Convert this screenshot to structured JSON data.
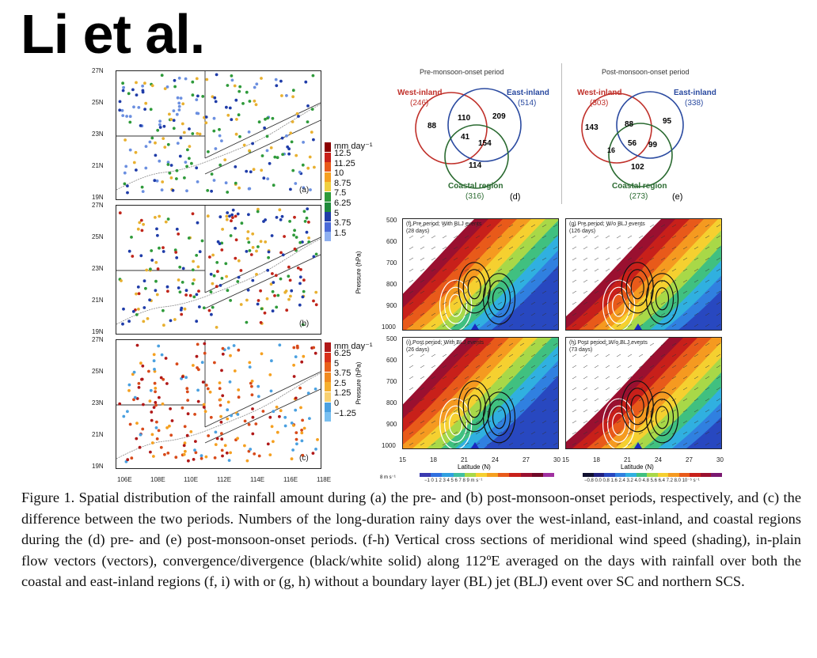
{
  "title": "Li et al.",
  "maps": {
    "lat_labels": [
      "27N",
      "25N",
      "23N",
      "21N",
      "19N"
    ],
    "lon_labels": [
      "106E",
      "108E",
      "110E",
      "112E",
      "114E",
      "116E",
      "118E"
    ],
    "panels": [
      {
        "label": "(a)",
        "dot_colors": [
          "#6b8fe0",
          "#1f3ca8",
          "#2e9a3a",
          "#e8b030"
        ]
      },
      {
        "label": "(b)",
        "dot_colors": [
          "#2e9a3a",
          "#e8b030",
          "#1f3ca8",
          "#c0251a"
        ]
      },
      {
        "label": "(c)",
        "dot_colors": [
          "#d84a1a",
          "#f5a020",
          "#4aa0e0",
          "#b01818"
        ]
      }
    ],
    "legend_ab": {
      "unit": "mm day⁻¹",
      "labels": [
        "12.5",
        "11.25",
        "10",
        "8.75",
        "7.5",
        "6.25",
        "5",
        "3.75",
        "1.5"
      ],
      "colors": [
        "#8b0000",
        "#c8201a",
        "#e85a1a",
        "#f5a020",
        "#f0d040",
        "#2e9a3a",
        "#1f8a3a",
        "#1f3ca8",
        "#4a6ad8",
        "#8fb0f0"
      ]
    },
    "legend_c": {
      "unit": "mm day⁻¹",
      "labels": [
        "6.25",
        "5",
        "3.75",
        "2.5",
        "1.25",
        "0",
        "−1.25"
      ],
      "colors": [
        "#b01818",
        "#d8301a",
        "#e8601a",
        "#f08a20",
        "#f5b030",
        "#f8d070",
        "#4aa0e0",
        "#7ac0f0"
      ]
    }
  },
  "venn_d": {
    "period": "Pre-monsoon-onset period",
    "west_label": "West-inland",
    "west_total": "(246)",
    "east_label": "East-inland",
    "east_total": "(514)",
    "coastal_label": "Coastal region",
    "coastal_total": "(316)",
    "west_only": "88",
    "west_east": "110",
    "east_only": "209",
    "all_three": "41",
    "east_coastal": "154",
    "coastal_only": "114",
    "panel": "(d)"
  },
  "venn_e": {
    "period": "Post-monsoon-onset period",
    "west_label": "West-inland",
    "west_total": "(303)",
    "east_label": "East-inland",
    "east_total": "(338)",
    "coastal_label": "Coastal region",
    "coastal_total": "(273)",
    "west_only": "143",
    "west_east": "88",
    "east_only": "95",
    "west_coastal": "16",
    "all_three": "56",
    "east_coastal": "99",
    "coastal_only": "102",
    "panel": "(e)"
  },
  "cross_sections": {
    "pressure_label": "Pressure (hPa)",
    "pressure_ticks": [
      "500",
      "600",
      "700",
      "800",
      "900",
      "1000"
    ],
    "lat_ticks_left": [
      "15",
      "18",
      "21",
      "24",
      "27",
      "30"
    ],
    "lat_ticks_right": [
      "15",
      "18",
      "21",
      "24",
      "27",
      "30"
    ],
    "xlabel": "Latitude (N)",
    "panels": [
      {
        "label": "(f)  Pre period; With BLJ events",
        "days": "(28 days)"
      },
      {
        "label": "(g)  Pre period; W/o BLJ events",
        "days": "(126 days)"
      },
      {
        "label": "(i)  Post period; With BLJ events",
        "days": "(26 days)"
      },
      {
        "label": "(h)  Post period; W/o BLJ events",
        "days": "(73 days)"
      }
    ],
    "vector_ref": "8 m s⁻¹",
    "cbar_left": "−1 0  1  2  3  4  5  6  7  8  9  m s⁻¹",
    "cbar_right": "−0.8 0.0 0.8 1.6 2.4 3.2 4.0 4.8 5.6 6.4 7.2 8.0 10⁻⁵ s⁻¹"
  },
  "caption": "Figure 1. Spatial distribution of the rainfall amount during (a) the pre- and (b) post-monsoon-onset periods, respectively, and (c) the difference between the two periods. Numbers of the long-duration rainy days over the west-inland, east-inland, and coastal regions during the (d) pre- and (e) post-monsoon-onset periods. (f-h) Vertical cross sections of meridional wind speed (shading), in-plain flow vectors (vectors), convergence/divergence (black/white solid) along 112ºE averaged on the days with rainfall over both the coastal and east-inland regions (f, i) with or (g, h) without a boundary layer (BL) jet (BLJ) event over SC and northern SCS."
}
